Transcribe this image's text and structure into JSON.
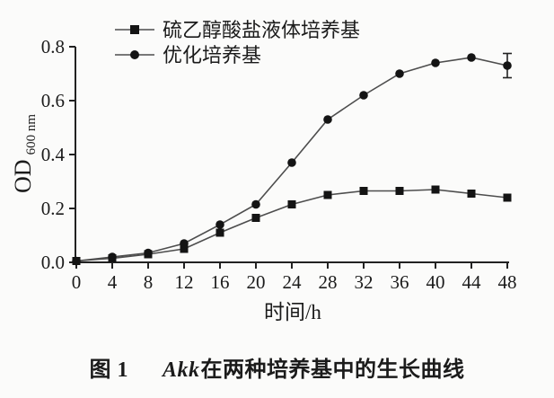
{
  "chart_data": {
    "type": "line",
    "title": "",
    "xlabel": "时间/h",
    "ylabel": "OD",
    "ylabel_subscript": "600 nm",
    "xlim": [
      0,
      48
    ],
    "ylim": [
      0.0,
      0.8
    ],
    "grid": false,
    "legend_position": "top-left-inside",
    "x": [
      0,
      4,
      8,
      12,
      16,
      20,
      24,
      28,
      32,
      36,
      40,
      44,
      48
    ],
    "xticks": [
      0,
      4,
      8,
      12,
      16,
      20,
      24,
      28,
      32,
      36,
      40,
      44,
      48
    ],
    "yticks": [
      0.0,
      0.2,
      0.4,
      0.6,
      0.8
    ],
    "ytick_labels": [
      "0.0",
      "0.2",
      "0.4",
      "0.6",
      "0.8"
    ],
    "series": [
      {
        "name": "硫乙醇酸盐液体培养基",
        "marker": "square",
        "values": [
          0.005,
          0.015,
          0.03,
          0.05,
          0.11,
          0.165,
          0.215,
          0.25,
          0.265,
          0.265,
          0.27,
          0.255,
          0.24
        ]
      },
      {
        "name": "优化培养基",
        "marker": "circle",
        "values": [
          0.005,
          0.02,
          0.035,
          0.07,
          0.14,
          0.215,
          0.37,
          0.53,
          0.62,
          0.7,
          0.74,
          0.76,
          0.73
        ],
        "error_bar": {
          "x": 48,
          "plus": 0.045,
          "minus": 0.045
        }
      }
    ]
  },
  "caption": {
    "label": "图 1",
    "italic": "Akk",
    "rest": "在两种培养基中的生长曲线"
  },
  "colors": {
    "background": "#fbfbfa",
    "axis": "#222222",
    "series_line": "#4d4d4d",
    "marker": "#141414",
    "text": "#1b1b1b"
  }
}
